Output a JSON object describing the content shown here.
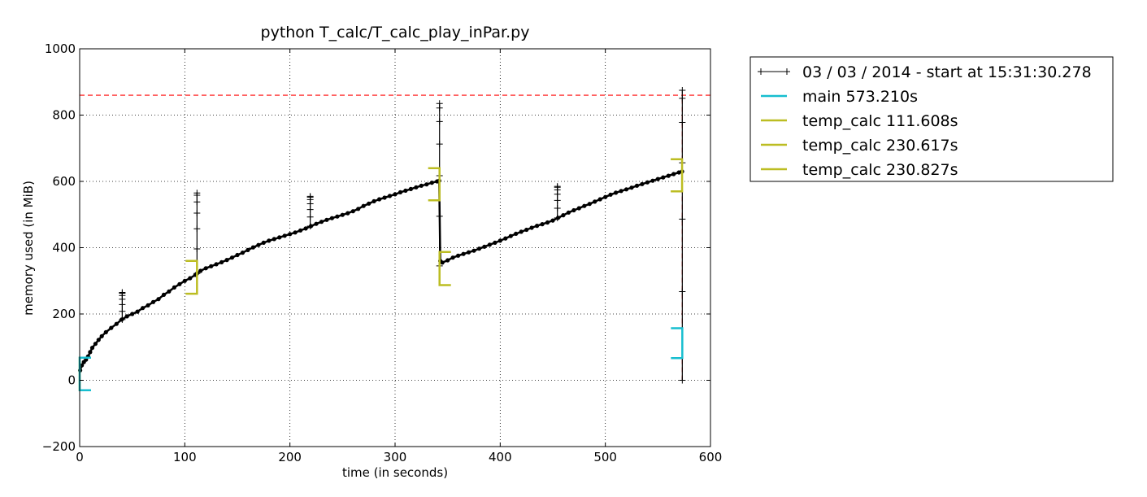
{
  "chart_data": {
    "type": "line",
    "title": "python T_calc/T_calc_play_inPar.py",
    "xlabel": "time (in seconds)",
    "ylabel": "memory used (in MiB)",
    "xlim": [
      0,
      600
    ],
    "ylim": [
      -200,
      1000
    ],
    "x_ticks": [
      0,
      100,
      200,
      300,
      400,
      500,
      600
    ],
    "y_ticks": [
      -200,
      0,
      200,
      400,
      600,
      800,
      1000
    ],
    "grid": true,
    "legend_position": "outside-right",
    "max_memory_line": {
      "y": 860,
      "color": "#ff0000",
      "style": "dashed"
    },
    "end_marker_line": {
      "x": 573.2,
      "color": "#ff0000",
      "style": "dashed"
    },
    "series": [
      {
        "name": "03 / 03 / 2014 - start at 15:31:30.278",
        "color": "#000000",
        "marker": "+",
        "points": [
          [
            0.5,
            30
          ],
          [
            2,
            45
          ],
          [
            4,
            55
          ],
          [
            6,
            62
          ],
          [
            8,
            72
          ],
          [
            10,
            85
          ],
          [
            12,
            98
          ],
          [
            15,
            110
          ],
          [
            18,
            122
          ],
          [
            21,
            133
          ],
          [
            25,
            145
          ],
          [
            30,
            158
          ],
          [
            35,
            170
          ],
          [
            40,
            183
          ],
          [
            45,
            193
          ],
          [
            50,
            200
          ],
          [
            55,
            207
          ],
          [
            60,
            218
          ],
          [
            65,
            226
          ],
          [
            70,
            236
          ],
          [
            75,
            245
          ],
          [
            80,
            258
          ],
          [
            85,
            268
          ],
          [
            90,
            280
          ],
          [
            95,
            290
          ],
          [
            100,
            300
          ],
          [
            105,
            308
          ],
          [
            110,
            318
          ],
          [
            111.6,
            322
          ],
          [
            115,
            330
          ],
          [
            120,
            338
          ],
          [
            125,
            344
          ],
          [
            130,
            350
          ],
          [
            135,
            356
          ],
          [
            140,
            363
          ],
          [
            145,
            370
          ],
          [
            150,
            378
          ],
          [
            155,
            385
          ],
          [
            160,
            393
          ],
          [
            165,
            401
          ],
          [
            170,
            408
          ],
          [
            175,
            415
          ],
          [
            180,
            421
          ],
          [
            185,
            426
          ],
          [
            190,
            431
          ],
          [
            195,
            436
          ],
          [
            200,
            441
          ],
          [
            205,
            446
          ],
          [
            210,
            452
          ],
          [
            215,
            458
          ],
          [
            220,
            465
          ],
          [
            225,
            472
          ],
          [
            230,
            478
          ],
          [
            235,
            484
          ],
          [
            240,
            489
          ],
          [
            245,
            494
          ],
          [
            250,
            499
          ],
          [
            255,
            504
          ],
          [
            260,
            510
          ],
          [
            265,
            517
          ],
          [
            270,
            526
          ],
          [
            275,
            533
          ],
          [
            280,
            540
          ],
          [
            285,
            546
          ],
          [
            290,
            551
          ],
          [
            295,
            556
          ],
          [
            300,
            561
          ],
          [
            305,
            567
          ],
          [
            310,
            572
          ],
          [
            315,
            577
          ],
          [
            320,
            582
          ],
          [
            325,
            587
          ],
          [
            330,
            591
          ],
          [
            335,
            596
          ],
          [
            340,
            600
          ],
          [
            342,
            602
          ],
          [
            343,
            360
          ],
          [
            345,
            355
          ],
          [
            350,
            362
          ],
          [
            355,
            370
          ],
          [
            360,
            376
          ],
          [
            365,
            381
          ],
          [
            370,
            386
          ],
          [
            375,
            391
          ],
          [
            380,
            397
          ],
          [
            385,
            403
          ],
          [
            390,
            409
          ],
          [
            395,
            415
          ],
          [
            400,
            421
          ],
          [
            405,
            428
          ],
          [
            410,
            435
          ],
          [
            415,
            442
          ],
          [
            420,
            448
          ],
          [
            425,
            454
          ],
          [
            430,
            460
          ],
          [
            435,
            466
          ],
          [
            440,
            471
          ],
          [
            445,
            476
          ],
          [
            450,
            482
          ],
          [
            455,
            490
          ],
          [
            460,
            498
          ],
          [
            465,
            506
          ],
          [
            470,
            513
          ],
          [
            475,
            519
          ],
          [
            480,
            526
          ],
          [
            485,
            532
          ],
          [
            490,
            539
          ],
          [
            495,
            546
          ],
          [
            500,
            553
          ],
          [
            505,
            560
          ],
          [
            510,
            566
          ],
          [
            515,
            571
          ],
          [
            520,
            576
          ],
          [
            525,
            581
          ],
          [
            530,
            587
          ],
          [
            535,
            592
          ],
          [
            540,
            597
          ],
          [
            545,
            602
          ],
          [
            550,
            607
          ],
          [
            555,
            612
          ],
          [
            560,
            617
          ],
          [
            565,
            622
          ],
          [
            570,
            627
          ],
          [
            573,
            630
          ]
        ],
        "spikes": [
          {
            "x": 40.5,
            "from": 183,
            "to": 265
          },
          {
            "x": 111.6,
            "from": 322,
            "to": 565
          },
          {
            "x": 219.3,
            "from": 465,
            "to": 555
          },
          {
            "x": 342.3,
            "from": 345,
            "to": 835
          },
          {
            "x": 454.4,
            "from": 490,
            "to": 585
          },
          {
            "x": 573.2,
            "from": 0,
            "to": 875
          }
        ]
      },
      {
        "name": "main 573.210s",
        "color": "#17becf"
      },
      {
        "name": "temp_calc 111.608s",
        "color": "#bcbd22"
      },
      {
        "name": "temp_calc 230.617s",
        "color": "#bcbd22"
      },
      {
        "name": "temp_calc 230.827s",
        "color": "#bcbd22"
      }
    ],
    "brackets": [
      {
        "x": 0,
        "ymin": -30,
        "ymax": 68,
        "side": "start",
        "color": "#bcbd22"
      },
      {
        "x": 0,
        "ymin": -30,
        "ymax": 68,
        "side": "start",
        "color": "#17becf"
      },
      {
        "x": 111.6,
        "ymin": 261,
        "ymax": 360,
        "side": "end",
        "color": "#bcbd22"
      },
      {
        "x": 342.3,
        "ymin": 543,
        "ymax": 640,
        "side": "end",
        "color": "#bcbd22"
      },
      {
        "x": 342.3,
        "ymin": 287,
        "ymax": 387,
        "side": "start",
        "color": "#bcbd22"
      },
      {
        "x": 573.0,
        "ymin": 570,
        "ymax": 667,
        "side": "end",
        "color": "#bcbd22"
      },
      {
        "x": 573.2,
        "ymin": 67,
        "ymax": 157,
        "side": "end",
        "color": "#17becf"
      }
    ]
  }
}
